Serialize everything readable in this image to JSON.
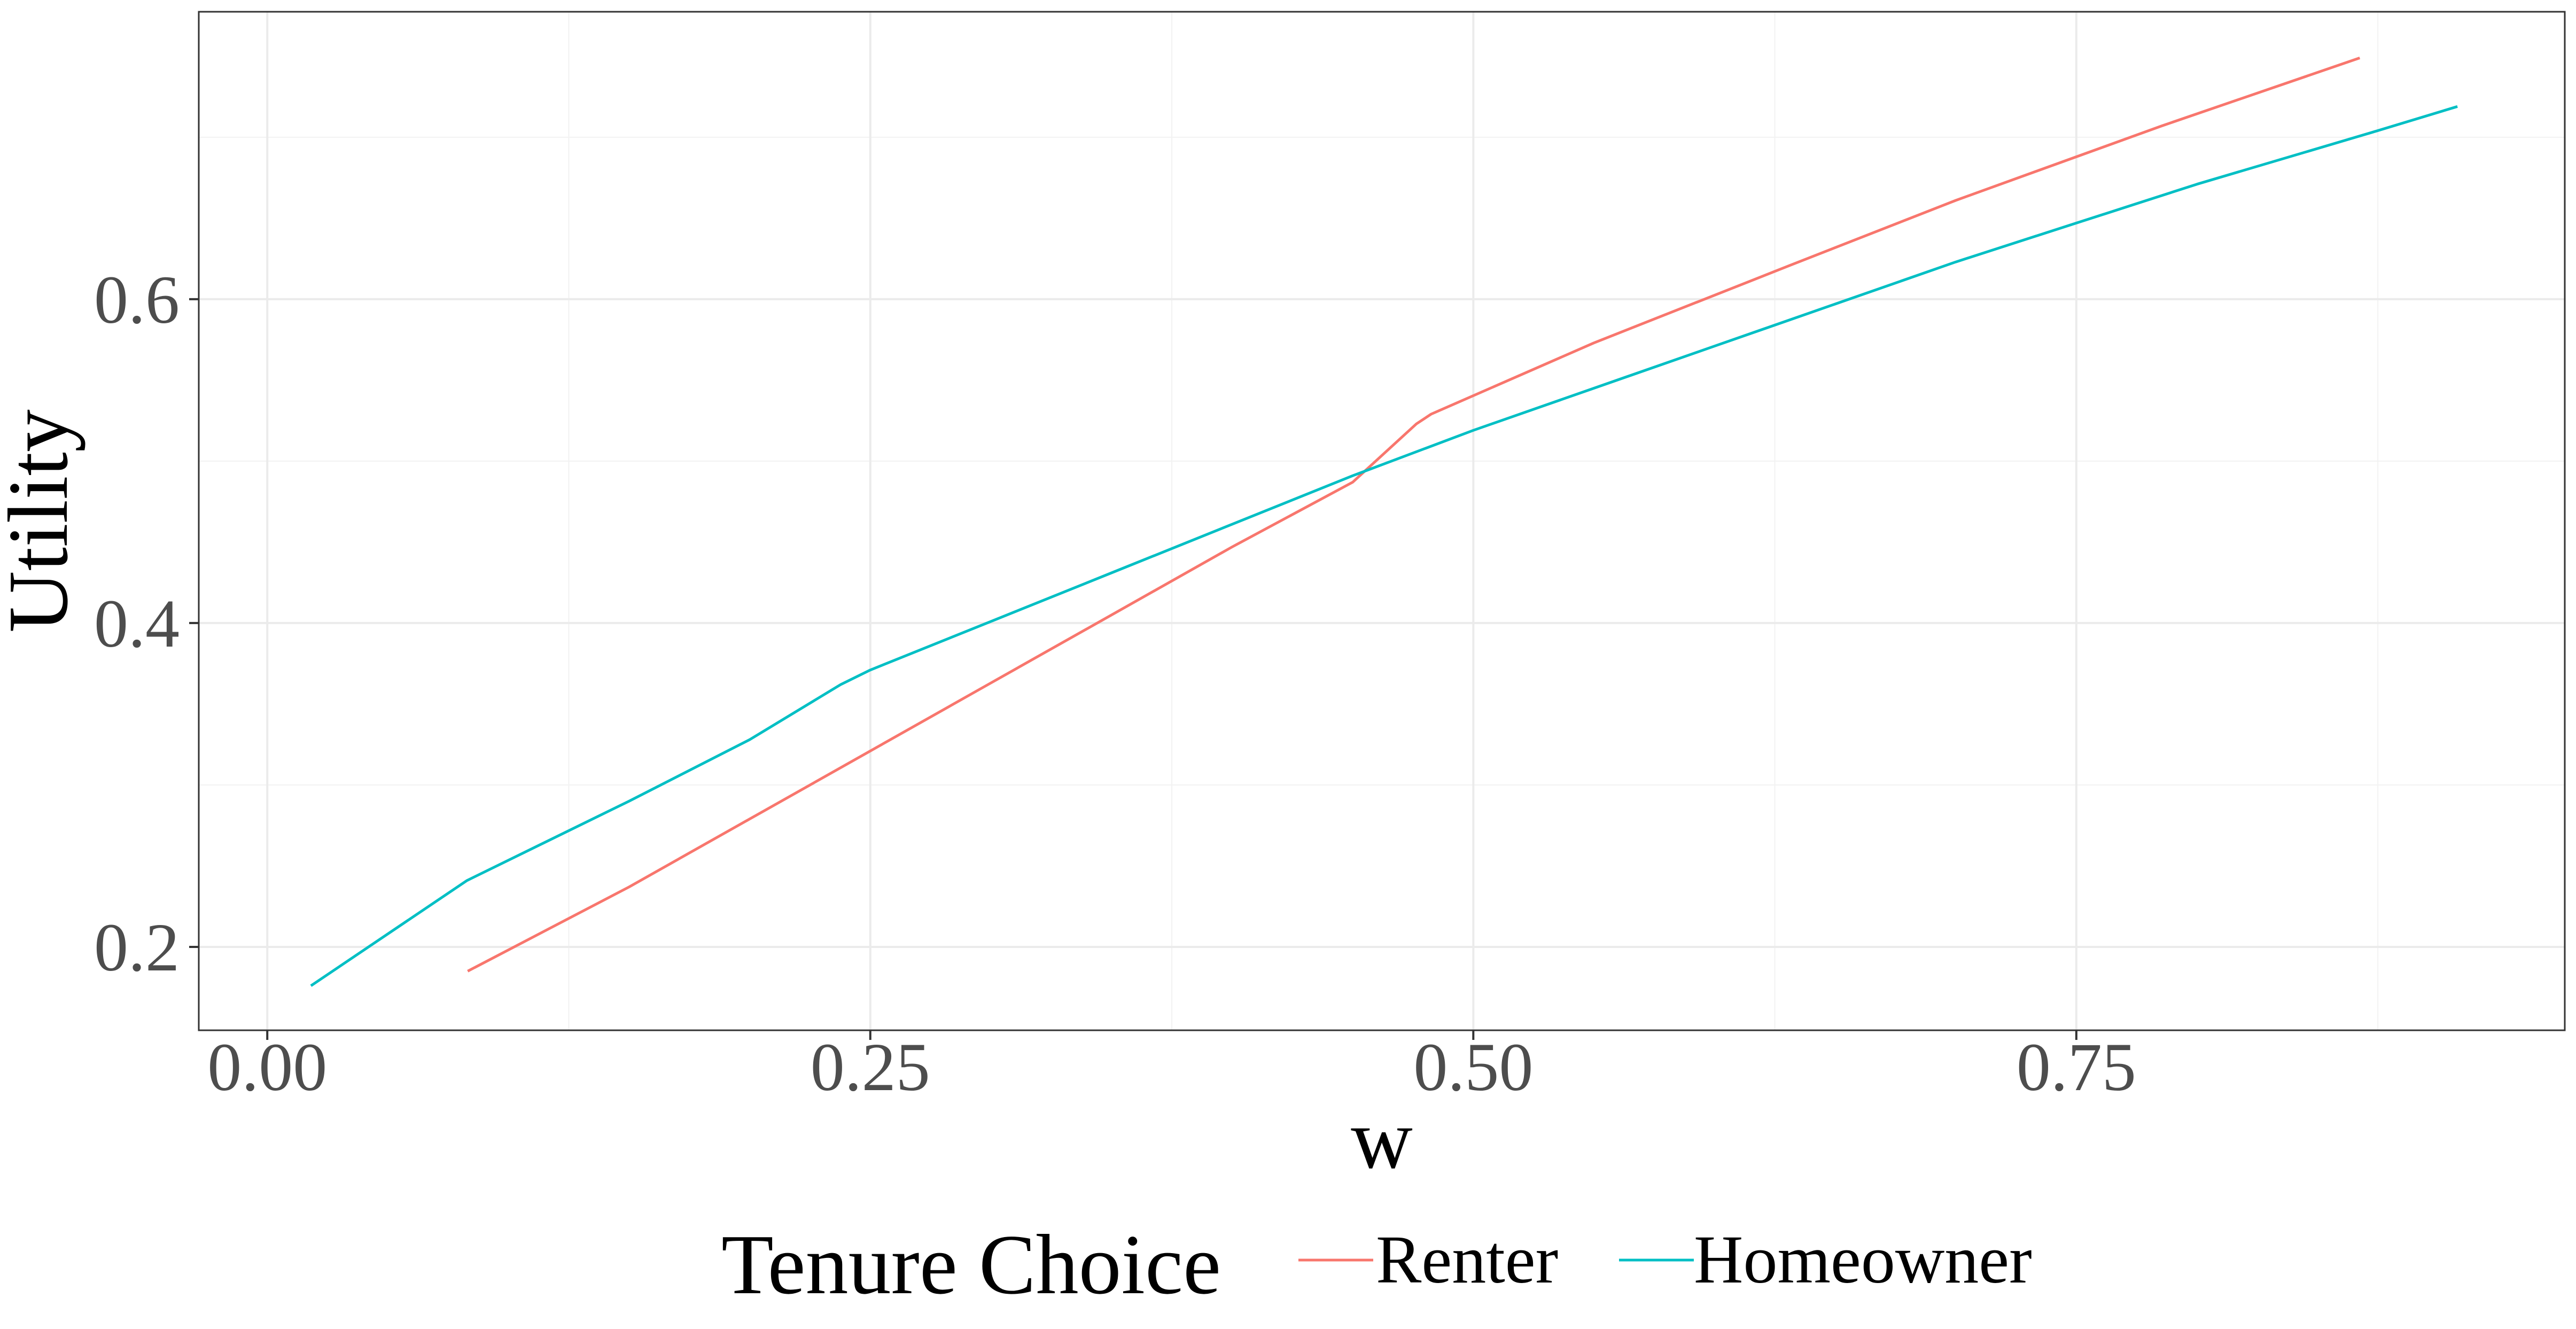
{
  "chart_data": {
    "type": "line",
    "title": "",
    "xlabel": "w",
    "ylabel": "Utility",
    "xlim": [
      -0.0284,
      0.9525
    ],
    "ylim": [
      0.1485,
      0.7775
    ],
    "x_ticks": [
      0.0,
      0.25,
      0.5,
      0.75
    ],
    "x_tick_labels": [
      "0.00",
      "0.25",
      "0.50",
      "0.75"
    ],
    "y_ticks": [
      0.2,
      0.4,
      0.6
    ],
    "y_tick_labels": [
      "0.2",
      "0.4",
      "0.6"
    ],
    "grid": true,
    "legend": {
      "title": "Tenure Choice",
      "placement": "bottom"
    },
    "series": [
      {
        "name": "Renter",
        "color": "#F8766D",
        "x": [
          0.0831,
          0.15,
          0.2,
          0.25,
          0.3,
          0.35,
          0.4,
          0.45,
          0.4764,
          0.4825,
          0.55,
          0.6315,
          0.7,
          0.7854,
          0.8675
        ],
        "y": [
          0.185,
          0.237,
          0.279,
          0.321,
          0.363,
          0.405,
          0.447,
          0.487,
          0.523,
          0.529,
          0.573,
          0.621,
          0.661,
          0.707,
          0.749
        ]
      },
      {
        "name": "Homeowner",
        "color": "#00BFC4",
        "x": [
          0.0181,
          0.0828,
          0.15,
          0.2,
          0.2377,
          0.25,
          0.3,
          0.35,
          0.4,
          0.45,
          0.5,
          0.55,
          0.6,
          0.65,
          0.7,
          0.75,
          0.8,
          0.8725,
          0.908
        ],
        "y": [
          0.176,
          0.241,
          0.29,
          0.328,
          0.362,
          0.371,
          0.401,
          0.431,
          0.461,
          0.491,
          0.519,
          0.545,
          0.571,
          0.597,
          0.623,
          0.647,
          0.671,
          0.703,
          0.719
        ]
      }
    ]
  }
}
